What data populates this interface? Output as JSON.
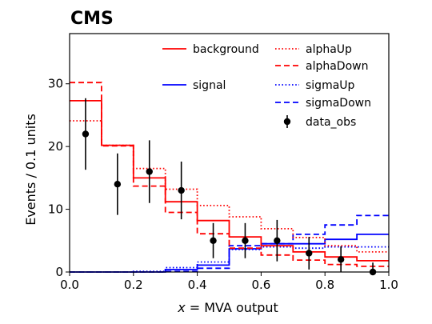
{
  "chart_data": {
    "type": "step-histogram",
    "experiment_label": "CMS",
    "xlabel_prefix": "x",
    "xlabel_suffix": " = MVA output",
    "ylabel": "Events / 0.1 units",
    "xlim": [
      0.0,
      1.0
    ],
    "ylim": [
      0,
      38
    ],
    "xticks": [
      "0.0",
      "0.2",
      "0.4",
      "0.6",
      "0.8",
      "1.0"
    ],
    "yticks": [
      "0",
      "10",
      "20",
      "30"
    ],
    "bin_edges": [
      0.0,
      0.1,
      0.2,
      0.3,
      0.4,
      0.5,
      0.6,
      0.7,
      0.8,
      0.9,
      1.0
    ],
    "series": [
      {
        "name": "background",
        "color": "#ff0000",
        "style": "solid",
        "values": [
          27.3,
          20.2,
          15.0,
          11.2,
          8.2,
          5.6,
          4.2,
          3.2,
          2.4,
          1.8
        ]
      },
      {
        "name": "alphaUp",
        "color": "#ff0000",
        "style": "dotted",
        "values": [
          24.1,
          20.2,
          16.5,
          13.2,
          10.6,
          8.8,
          6.9,
          5.5,
          4.2,
          3.2
        ]
      },
      {
        "name": "alphaDown",
        "color": "#ff0000",
        "style": "dashed",
        "values": [
          30.2,
          20.1,
          13.7,
          9.5,
          6.1,
          3.8,
          2.7,
          1.9,
          1.2,
          0.9
        ]
      },
      {
        "name": "signal",
        "color": "#0000ff",
        "style": "solid",
        "values": [
          0.0,
          0.0,
          0.0,
          0.4,
          1.1,
          3.7,
          4.5,
          4.5,
          5.2,
          6.0
        ]
      },
      {
        "name": "sigmaUp",
        "color": "#0000ff",
        "style": "dotted",
        "values": [
          0.0,
          0.0,
          0.1,
          0.7,
          1.6,
          3.6,
          4.0,
          3.8,
          4.0,
          4.0
        ]
      },
      {
        "name": "sigmaDown",
        "color": "#0000ff",
        "style": "dashed",
        "values": [
          0.0,
          0.0,
          0.0,
          0.1,
          0.6,
          4.2,
          4.5,
          6.0,
          7.5,
          9.0
        ]
      }
    ],
    "data_obs": {
      "name": "data_obs",
      "color": "#000000",
      "x": [
        0.05,
        0.15,
        0.25,
        0.35,
        0.45,
        0.55,
        0.65,
        0.75,
        0.85,
        0.95
      ],
      "y": [
        22,
        14,
        16,
        13,
        5,
        5,
        5,
        3,
        2,
        0
      ],
      "err": [
        5.7,
        4.9,
        5.0,
        4.6,
        2.8,
        2.8,
        3.3,
        2.6,
        2.1,
        1.5
      ]
    },
    "legend": {
      "placement": "top-right",
      "entries": [
        "background",
        "alphaUp",
        "alphaDown",
        "signal",
        "sigmaUp",
        "sigmaDown",
        "data_obs"
      ]
    },
    "grid": false
  }
}
